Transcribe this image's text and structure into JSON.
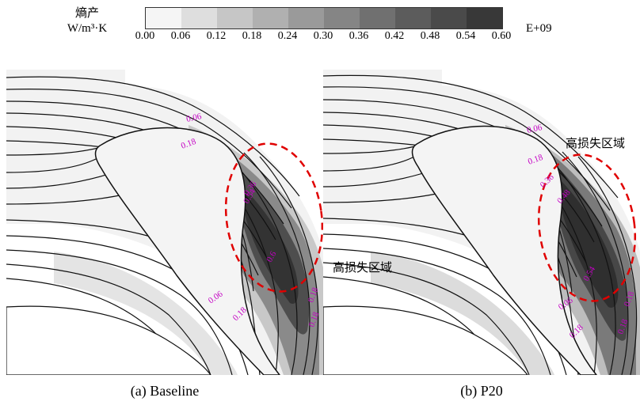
{
  "legend": {
    "title_line1": "熵产",
    "title_line2": "W/m³·K",
    "exponent": "E+09",
    "ticks": [
      "0.00",
      "0.06",
      "0.12",
      "0.18",
      "0.24",
      "0.30",
      "0.36",
      "0.42",
      "0.48",
      "0.54",
      "0.60"
    ],
    "colors": [
      "#f5f5f5",
      "#dedede",
      "#c6c6c6",
      "#b0b0b0",
      "#9a9a9a",
      "#858585",
      "#707070",
      "#5c5c5c",
      "#4a4a4a",
      "#383838"
    ]
  },
  "panels": [
    {
      "caption": "(a) Baseline",
      "contour_labels": [
        "0.06",
        "0.18",
        "0.36",
        "0.54",
        "0.6",
        "0.06",
        "0.18",
        "0.18",
        "0.18"
      ],
      "annotation": "高损失区域"
    },
    {
      "caption": "(b) P20",
      "contour_labels": [
        "0.06",
        "0.18",
        "0.36",
        "0.48",
        "0.54",
        "0.06",
        "0.18",
        "0.18",
        "0.18"
      ],
      "annotation": "高损失区域"
    }
  ],
  "highlight_color": "#e00000"
}
